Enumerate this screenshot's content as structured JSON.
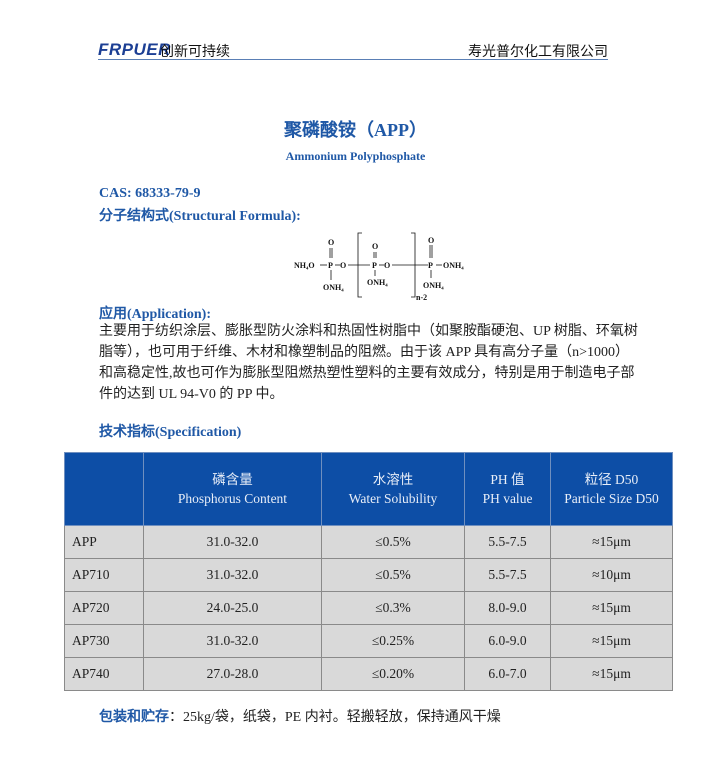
{
  "header": {
    "logo": "FRPUER",
    "slogan": "创新可持续",
    "company": "寿光普尔化工有限公司"
  },
  "title": "聚磷酸铵（APP）",
  "subtitle": "Ammonium Polyphosphate",
  "cas": "CAS: 68333-79-9",
  "structure_heading": "分子结构式(Structural Formula):",
  "formula": {
    "left": "NH₄O",
    "o": "O",
    "p": "P",
    "onh4": "ONH₄",
    "right": "ONH₄",
    "n": "n-2"
  },
  "application_heading": "应用(Application):",
  "application_text": "主要用于纺织涂层、膨胀型防火涂料和热固性树脂中（如聚胺酯硬泡、UP 树脂、环氧树脂等），也可用于纤维、木材和橡塑制品的阻燃。由于该 APP 具有高分子量（n>1000）和高稳定性,故也可作为膨胀型阻燃热塑性塑料的主要有效成分，特别是用于制造电子部件的达到 UL 94-V0 的 PP 中。",
  "spec_heading": "技术指标(Specification)",
  "table": {
    "headers": [
      [
        "",
        ""
      ],
      [
        "磷含量",
        "Phosphorus Content"
      ],
      [
        "水溶性",
        "Water Solubility"
      ],
      [
        "PH 值",
        "PH value"
      ],
      [
        "粒径 D50",
        "Particle Size D50"
      ]
    ],
    "rows": [
      [
        "APP",
        "31.0-32.0",
        "≤0.5%",
        "5.5-7.5",
        "≈15μm"
      ],
      [
        "AP710",
        "31.0-32.0",
        "≤0.5%",
        "5.5-7.5",
        "≈10μm"
      ],
      [
        "AP720",
        "24.0-25.0",
        "≤0.3%",
        "8.0-9.0",
        "≈15μm"
      ],
      [
        "AP730",
        "31.0-32.0",
        "≤0.25%",
        "6.0-9.0",
        "≈15μm"
      ],
      [
        "AP740",
        "27.0-28.0",
        "≤0.20%",
        "6.0-7.0",
        "≈15μm"
      ]
    ]
  },
  "footer": {
    "label": "包装和贮存",
    "text": "：25kg/袋，纸袋，PE 内衬。轻搬轻放，保持通风干燥"
  },
  "colors": {
    "accent": "#1f58a6",
    "table_header": "#0d4ea6",
    "table_cell": "#d9d9d9"
  }
}
